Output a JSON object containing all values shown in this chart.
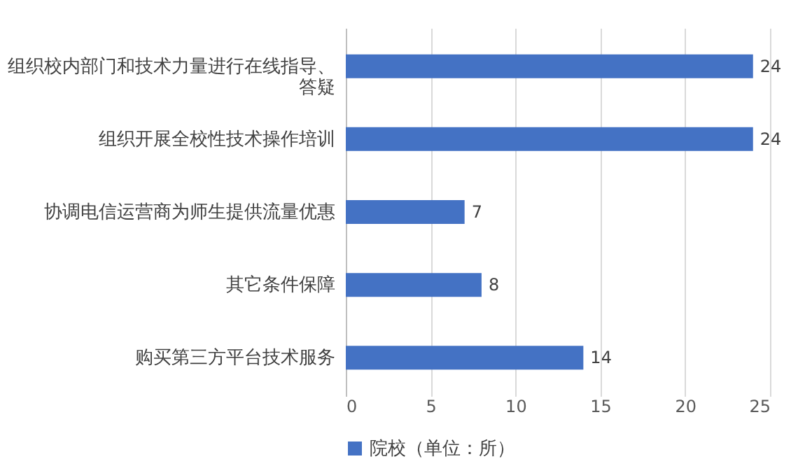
{
  "chart_data": {
    "type": "bar",
    "orientation": "horizontal",
    "categories": [
      "组织校内部门和技术力量进行在线指导、答疑",
      "组织开展全校性技术操作培训",
      "协调电信运营商为师生提供流量优惠",
      "其它条件保障",
      "购买第三方平台技术服务"
    ],
    "series": [
      {
        "name": "院校（单位：所）",
        "color": "#4472c4",
        "values": [
          24,
          24,
          7,
          8,
          14
        ]
      }
    ],
    "xlim": [
      0,
      25
    ],
    "xticks": [
      0,
      5,
      10,
      15,
      20,
      25
    ],
    "grid": "x",
    "legend": "bottom",
    "data_labels": true
  }
}
